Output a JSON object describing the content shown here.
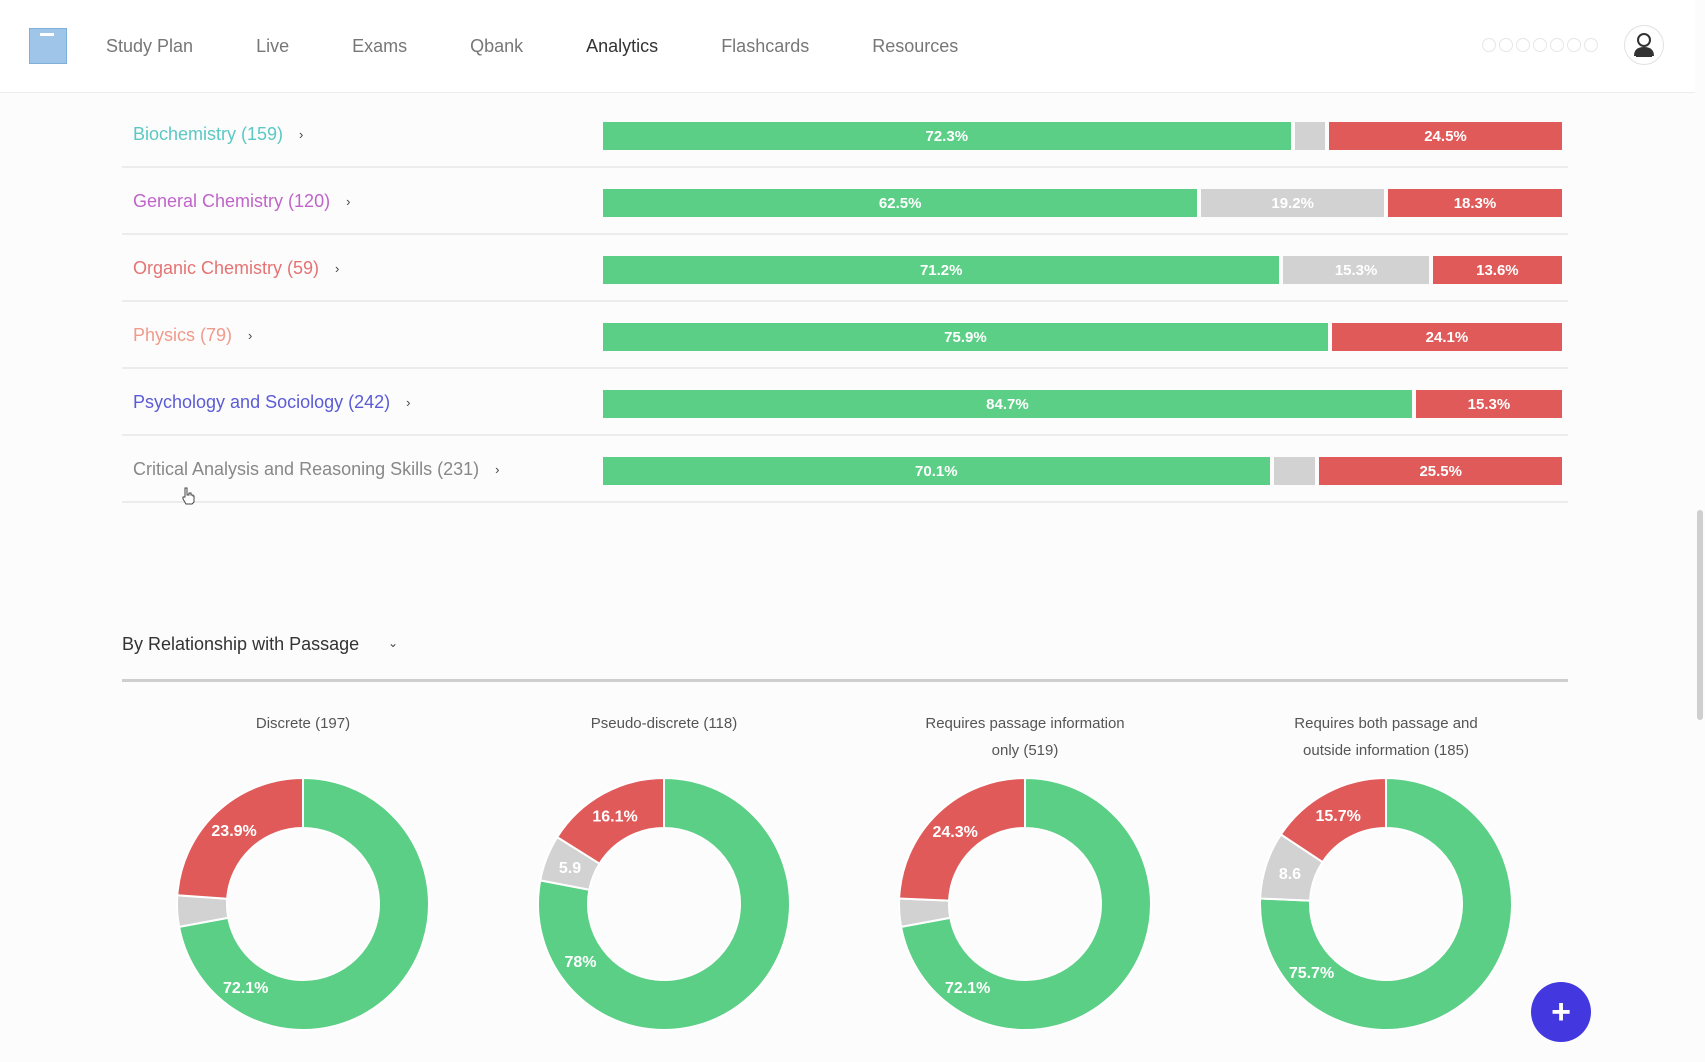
{
  "nav": {
    "items": [
      "Study Plan",
      "Live",
      "Exams",
      "Qbank",
      "Analytics",
      "Flashcards",
      "Resources"
    ],
    "active": "Analytics"
  },
  "subjects": [
    {
      "label": "Biochemistry (159)",
      "color": "#5bc8c4",
      "correct": 72.3,
      "omitted": 3.2,
      "incorrect": 24.5,
      "correct_label": "72.3%",
      "omitted_label": "",
      "incorrect_label": "24.5%"
    },
    {
      "label": "General Chemistry (120)",
      "color": "#c064c9",
      "correct": 62.5,
      "omitted": 19.2,
      "incorrect": 18.3,
      "correct_label": "62.5%",
      "omitted_label": "19.2%",
      "incorrect_label": "18.3%"
    },
    {
      "label": "Organic Chemistry (59)",
      "color": "#e57373",
      "correct": 71.2,
      "omitted": 15.3,
      "incorrect": 13.6,
      "correct_label": "71.2%",
      "omitted_label": "15.3%",
      "incorrect_label": "13.6%"
    },
    {
      "label": "Physics (79)",
      "color": "#f09a8c",
      "correct": 75.9,
      "omitted": 0,
      "incorrect": 24.1,
      "correct_label": "75.9%",
      "omitted_label": "",
      "incorrect_label": "24.1%"
    },
    {
      "label": "Psychology and Sociology (242)",
      "color": "#5b5bd6",
      "correct": 84.7,
      "omitted": 0,
      "incorrect": 15.3,
      "correct_label": "84.7%",
      "omitted_label": "",
      "incorrect_label": "15.3%"
    },
    {
      "label": "Critical Analysis and Reasoning Skills (231)",
      "color": "#888888",
      "correct": 70.1,
      "omitted": 4.4,
      "incorrect": 25.5,
      "correct_label": "70.1%",
      "omitted_label": "",
      "incorrect_label": "25.5%"
    }
  ],
  "section": {
    "title": "By Relationship with Passage"
  },
  "donuts": [
    {
      "title_lines": [
        "Discrete (197)"
      ],
      "correct": 72.1,
      "omitted": 4.0,
      "incorrect": 23.9,
      "correct_label": "72.1%",
      "omitted_label": "",
      "incorrect_label": "23.9%"
    },
    {
      "title_lines": [
        "Pseudo-discrete (118)"
      ],
      "correct": 78.0,
      "omitted": 5.9,
      "incorrect": 16.1,
      "correct_label": "78%",
      "omitted_label": "5.9",
      "incorrect_label": "16.1%"
    },
    {
      "title_lines": [
        "Requires passage information",
        "only (519)"
      ],
      "correct": 72.1,
      "omitted": 3.6,
      "incorrect": 24.3,
      "correct_label": "72.1%",
      "omitted_label": "",
      "incorrect_label": "24.3%"
    },
    {
      "title_lines": [
        "Requires both passage and",
        "outside information (185)"
      ],
      "correct": 75.7,
      "omitted": 8.6,
      "incorrect": 15.7,
      "correct_label": "75.7%",
      "omitted_label": "8.6",
      "incorrect_label": "15.7%"
    }
  ],
  "colors": {
    "correct": "#5ccf86",
    "omitted": "#d2d2d2",
    "incorrect": "#e05a5a",
    "fab": "#4338e0"
  },
  "fab": {
    "label": "+"
  }
}
